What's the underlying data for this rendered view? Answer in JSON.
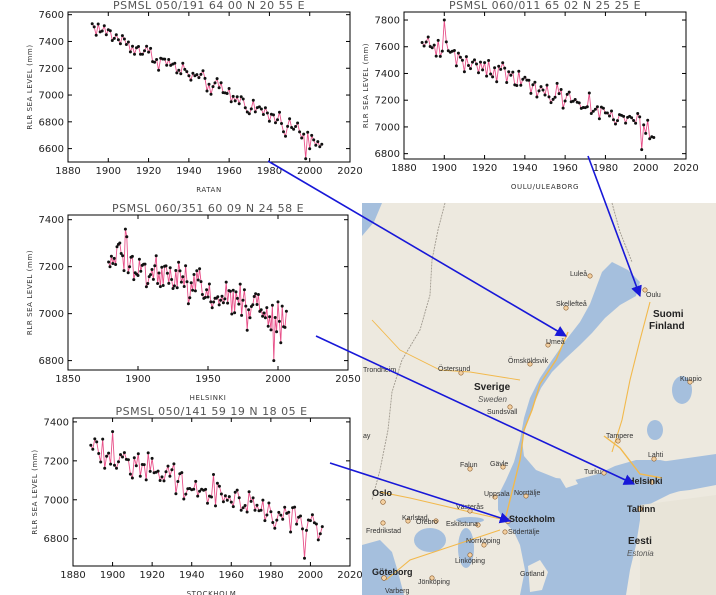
{
  "chart_data": [
    {
      "type": "scatter",
      "id": "ratan",
      "title": "PSMSL 050/191    64 00 N    20 55 E",
      "xlabel": "RATAN",
      "ylabel": "RLR SEA LEVEL (mm)",
      "xlim": [
        1880,
        2020
      ],
      "ylim": [
        6500,
        7620
      ],
      "xticks": [
        1880,
        1900,
        1920,
        1940,
        1960,
        1980,
        2000,
        2020
      ],
      "yticks": [
        6600,
        6800,
        7000,
        7200,
        7400,
        7600
      ],
      "start": 1892,
      "end": 2006,
      "trend": [
        7520,
        6650
      ],
      "amp": 55,
      "drops": [
        [
          1998,
          6525
        ]
      ]
    },
    {
      "type": "scatter",
      "id": "oulu",
      "title": "PSMSL 060/011    65 02 N    25 25 E",
      "xlabel": "OULU/ULEABORG",
      "ylabel": "RLR SEA LEVEL (mm)",
      "xlim": [
        1880,
        2020
      ],
      "ylim": [
        6760,
        7860
      ],
      "xticks": [
        1880,
        1900,
        1920,
        1940,
        1960,
        1980,
        2000,
        2020
      ],
      "yticks": [
        6800,
        7000,
        7200,
        7400,
        7600,
        7800
      ],
      "start": 1889,
      "end": 2004,
      "trend": [
        7640,
        6960
      ],
      "amp": 70,
      "drops": [
        [
          1998,
          6830
        ],
        [
          1900,
          7800
        ]
      ]
    },
    {
      "type": "scatter",
      "id": "helsinki",
      "title": "PSMSL 060/351    60 09 N    24 58 E",
      "xlabel": "HELSINKI",
      "ylabel": "RLR SEA LEVEL (mm)",
      "xlim": [
        1850,
        2050
      ],
      "ylim": [
        6760,
        7420
      ],
      "xticks": [
        1850,
        1900,
        1950,
        2000,
        2050
      ],
      "yticks": [
        6800,
        7000,
        7200,
        7400
      ],
      "start": 1879,
      "end": 2006,
      "trend": [
        7250,
        6970
      ],
      "amp": 65,
      "drops": [
        [
          1997,
          6800
        ],
        [
          1891,
          7360
        ]
      ]
    },
    {
      "type": "scatter",
      "id": "stockholm",
      "title": "PSMSL 050/141    59 19 N    18 05 E",
      "xlabel": "STOCKHOLM",
      "ylabel": "RLR SEA LEVEL (mm)",
      "xlim": [
        1880,
        2020
      ],
      "ylim": [
        6660,
        7420
      ],
      "xticks": [
        1880,
        1900,
        1920,
        1940,
        1960,
        1980,
        2000,
        2020
      ],
      "yticks": [
        6800,
        7000,
        7200,
        7400
      ],
      "start": 1889,
      "end": 2006,
      "trend": [
        7250,
        6850
      ],
      "amp": 60,
      "drops": [
        [
          1997,
          6700
        ],
        [
          1900,
          7350
        ]
      ]
    }
  ],
  "map": {
    "countries": {
      "finland": "Suomi",
      "finland_en": "Finland",
      "sweden": "Sverige",
      "sweden_en": "Sweden",
      "estonia": "Eesti",
      "estonia_en": "Estonia"
    },
    "cities": {
      "lulea": "Luleå",
      "skelleftea": "Skellefteå",
      "umea": "Umeå",
      "oulu": "Oulu",
      "kuopio": "Kuopio",
      "ostersund": "Östersund",
      "ornskoldsvik": "Örnsköldsvik",
      "sundsvall": "Sundsvall",
      "trondheim": "Trondheim",
      "tampere": "Tampere",
      "lahti": "Lahti",
      "turku": "Turku",
      "helsinki": "Helsinki",
      "tallinn": "Tallinn",
      "falun": "Falun",
      "gavle": "Gävle",
      "uppsala": "Uppsala",
      "norrtalje": "Norrtälje",
      "vasteras": "Västerås",
      "stockholm": "Stockholm",
      "sodertalje": "Södertälje",
      "eskilstuna": "Eskilstuna",
      "orebro": "Örebro",
      "karlstad": "Karlstad",
      "oslo": "Oslo",
      "fredrikstad": "Fredrikstad",
      "norrkoping": "Norrköping",
      "linkoping": "Linköping",
      "goteborg": "Göteborg",
      "jonkoping": "Jönköping",
      "varberg": "Varberg",
      "gotland": "Gotland",
      "ay": "ay"
    },
    "colors": {
      "water": "#a5bfdd",
      "land": "#ede9df",
      "road": "#f2b94c",
      "arrow": "#1818d8"
    }
  }
}
